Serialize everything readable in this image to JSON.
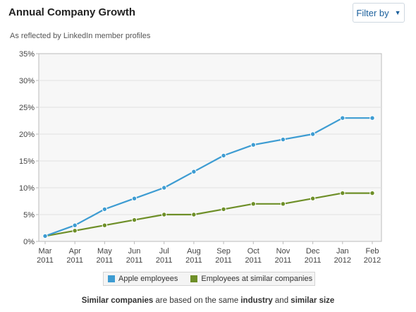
{
  "header": {
    "title": "Annual Company Growth",
    "filter_label": "Filter by",
    "subtitle": "As reflected by LinkedIn member profiles"
  },
  "chart_data": {
    "type": "line",
    "title": "Annual Company Growth",
    "subtitle": "As reflected by LinkedIn member profiles",
    "categories": [
      [
        "Mar",
        "2011"
      ],
      [
        "Apr",
        "2011"
      ],
      [
        "May",
        "2011"
      ],
      [
        "Jun",
        "2011"
      ],
      [
        "Jul",
        "2011"
      ],
      [
        "Aug",
        "2011"
      ],
      [
        "Sep",
        "2011"
      ],
      [
        "Oct",
        "2011"
      ],
      [
        "Nov",
        "2011"
      ],
      [
        "Dec",
        "2011"
      ],
      [
        "Jan",
        "2012"
      ],
      [
        "Feb",
        "2012"
      ]
    ],
    "ylim": [
      0,
      35
    ],
    "yticks": [
      0,
      5,
      10,
      15,
      20,
      25,
      30,
      35
    ],
    "ytick_suffix": "%",
    "grid": true,
    "legend_position": "bottom",
    "series": [
      {
        "name": "Apple employees",
        "color": "#3d9cd2",
        "values": [
          1,
          3,
          6,
          8,
          10,
          13,
          16,
          18,
          19,
          20,
          23,
          23
        ]
      },
      {
        "name": "Employees at similar companies",
        "color": "#6e8f28",
        "values": [
          1,
          2,
          3,
          4,
          5,
          5,
          6,
          7,
          7,
          8,
          9,
          9
        ]
      }
    ]
  },
  "footnote": {
    "part1": "Similar companies",
    "part2": " are based on the same ",
    "part3": "industry",
    "part4": " and ",
    "part5": "similar size"
  },
  "colors": {
    "plot_bg": "#f7f7f7",
    "grid": "#e2e2e2",
    "axis": "#bbbbbb",
    "link": "#1a5f9c"
  }
}
